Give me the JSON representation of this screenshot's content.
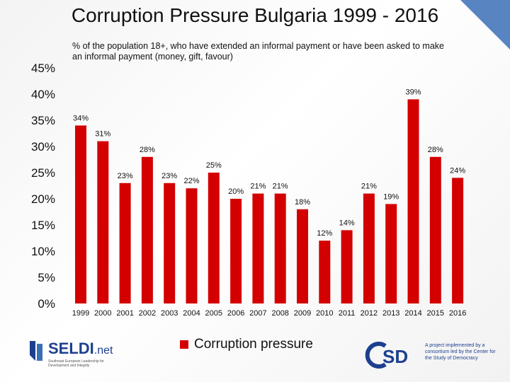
{
  "colors": {
    "bar": "#d40000",
    "accent": "#3b6fb6",
    "brand": "#1d3f8f"
  },
  "chart_data": {
    "type": "bar",
    "title": "Corruption Pressure Bulgaria 1999 - 2016",
    "subtitle": "% of the population 18+, who have extended an informal payment or have been asked to make an informal payment (money, gift, favour)",
    "categories": [
      "1999",
      "2000",
      "2001",
      "2002",
      "2003",
      "2004",
      "2005",
      "2006",
      "2007",
      "2008",
      "2009",
      "2010",
      "2011",
      "2012",
      "2013",
      "2014",
      "2015",
      "2016"
    ],
    "values": [
      34,
      31,
      23,
      28,
      23,
      22,
      25,
      20,
      21,
      21,
      18,
      12,
      14,
      21,
      19,
      39,
      28,
      24
    ],
    "value_labels": [
      "34%",
      "31%",
      "23%",
      "28%",
      "23%",
      "22%",
      "25%",
      "20%",
      "21%",
      "21%",
      "18%",
      "12%",
      "14%",
      "21%",
      "19%",
      "39%",
      "28%",
      "24%"
    ],
    "ylim": [
      0,
      45
    ],
    "yticks": [
      "0%",
      "5%",
      "10%",
      "15%",
      "20%",
      "25%",
      "30%",
      "35%",
      "40%",
      "45%"
    ],
    "series": [
      {
        "name": "Corruption pressure",
        "values": [
          34,
          31,
          23,
          28,
          23,
          22,
          25,
          20,
          21,
          21,
          18,
          12,
          14,
          21,
          19,
          39,
          28,
          24
        ]
      }
    ],
    "legend_position": "bottom",
    "grid": false
  },
  "logos": {
    "seldi_name": "SELDI",
    "seldi_suffix": ".net",
    "seldi_tagline": "Southeast European Leadership for Development and Integrity",
    "csd_caption": "A project implemented by a consortium led by the Center for the Study of Democracy"
  }
}
